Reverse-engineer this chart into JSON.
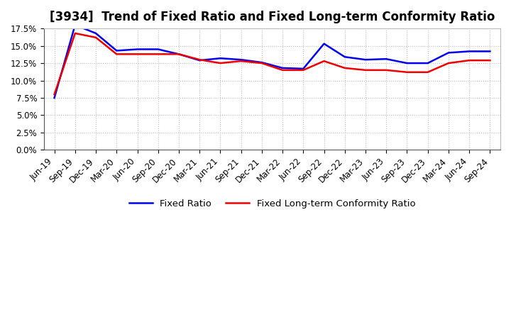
{
  "title": "[3934]  Trend of Fixed Ratio and Fixed Long-term Conformity Ratio",
  "x_labels": [
    "Jun-19",
    "Sep-19",
    "Dec-19",
    "Mar-20",
    "Jun-20",
    "Sep-20",
    "Dec-20",
    "Mar-21",
    "Jun-21",
    "Sep-21",
    "Dec-21",
    "Mar-22",
    "Jun-22",
    "Sep-22",
    "Dec-22",
    "Mar-23",
    "Jun-23",
    "Sep-23",
    "Dec-23",
    "Mar-24",
    "Jun-24",
    "Sep-24"
  ],
  "fixed_ratio": [
    7.5,
    18.0,
    16.8,
    14.3,
    14.5,
    14.5,
    13.8,
    12.9,
    13.2,
    13.0,
    12.6,
    11.8,
    11.7,
    15.3,
    13.4,
    13.0,
    13.1,
    12.5,
    12.5,
    14.0,
    14.2,
    14.2
  ],
  "fixed_lt_ratio": [
    8.0,
    16.8,
    16.2,
    13.8,
    13.8,
    13.8,
    13.8,
    13.0,
    12.5,
    12.8,
    12.5,
    11.5,
    11.5,
    12.8,
    11.8,
    11.5,
    11.5,
    11.2,
    11.2,
    12.5,
    12.9,
    12.9
  ],
  "fixed_ratio_color": "#0000EE",
  "fixed_lt_ratio_color": "#EE0000",
  "ylim": [
    0.0,
    17.5
  ],
  "ytick_values": [
    0.0,
    2.5,
    5.0,
    7.5,
    10.0,
    12.5,
    15.0,
    17.5
  ],
  "background_color": "#FFFFFF",
  "grid_color": "#BBBBBB",
  "line_width": 1.8,
  "title_fontsize": 12,
  "tick_fontsize": 8.5
}
